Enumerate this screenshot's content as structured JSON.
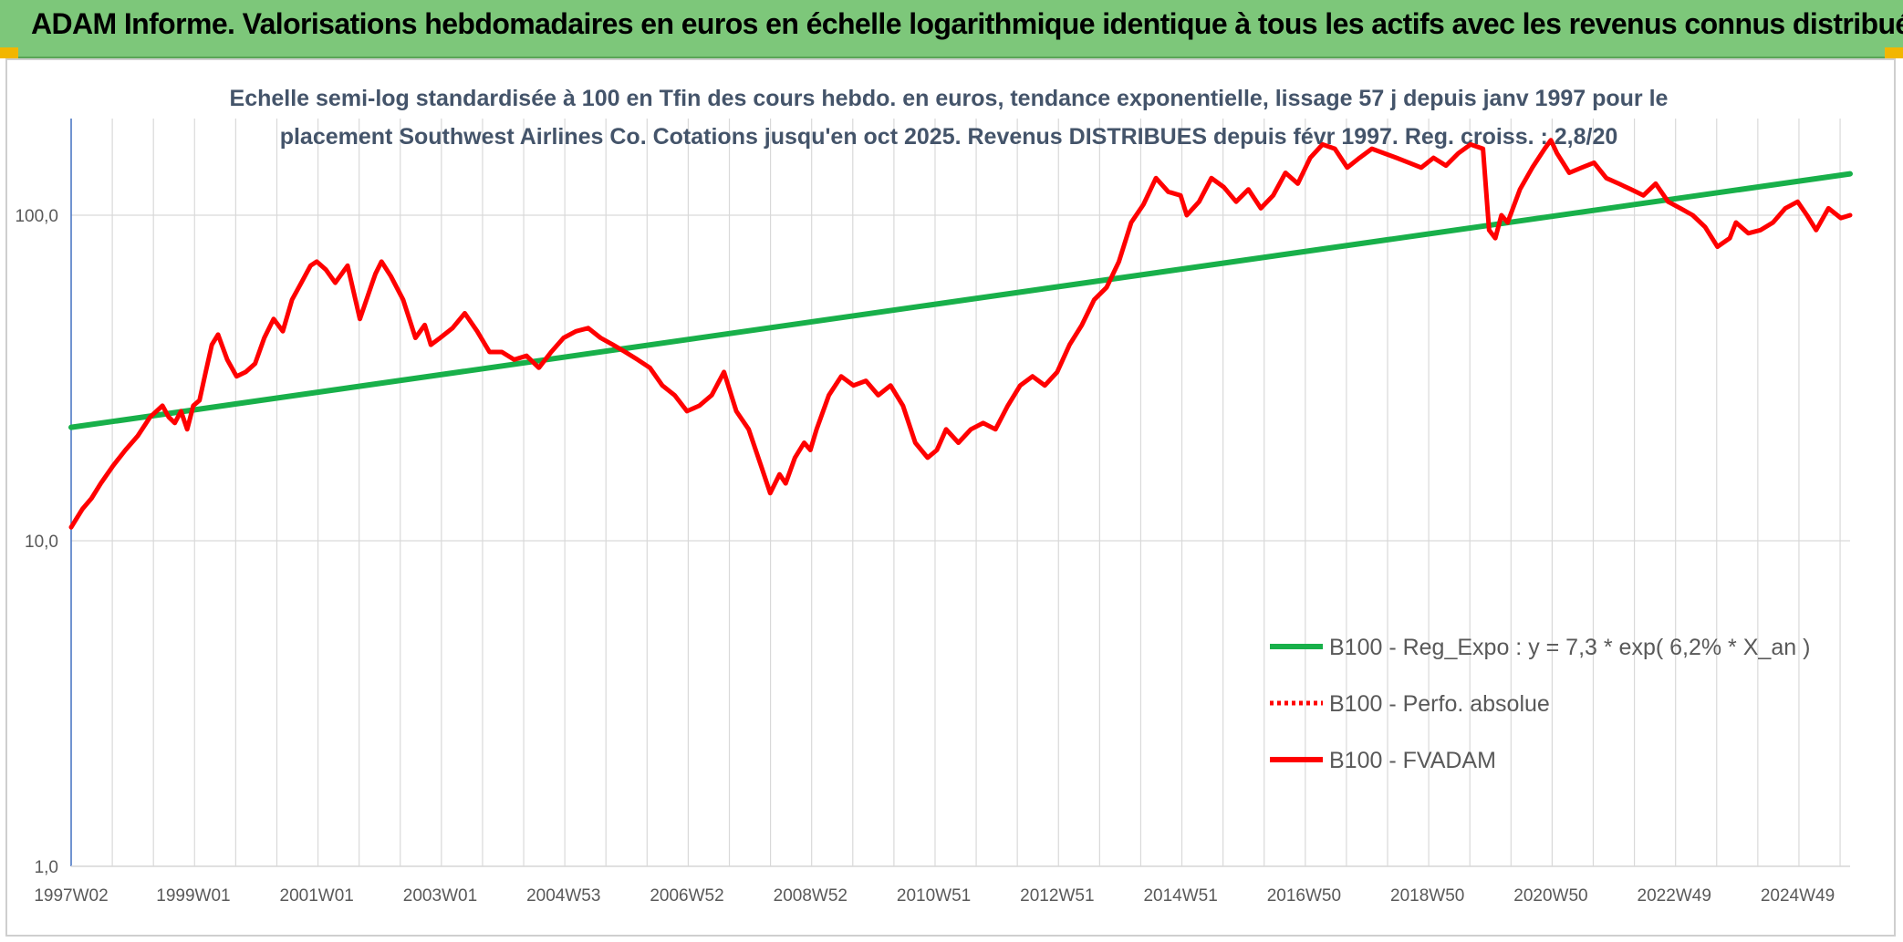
{
  "header": {
    "title": "ADAM Informe. Valorisations hebdomadaires en euros en échelle logarithmique identique à tous les actifs avec les revenus connus distribués"
  },
  "colors": {
    "banner": "#7dc77a",
    "trend": "#18b04a",
    "fvadam": "#ff0000",
    "grid": "#d9d9d9",
    "axis": "#4472c4"
  },
  "chart_data": {
    "type": "line",
    "title_lines": [
      "Echelle semi-log standardisée à 100 en Tfin des cours hebdo. en euros, tendance exponentielle, lissage 57 j depuis janv 1997 pour le",
      "placement Southwest Airlines Co. Cotations jusqu'en oct 2025. Revenus DISTRIBUES depuis févr 1997. Reg. croiss. : 2,8/20"
    ],
    "y_scale": "log",
    "ylim": [
      1,
      200
    ],
    "y_ticks": [
      {
        "value": 1,
        "label": "1,0"
      },
      {
        "value": 10,
        "label": "10,0"
      },
      {
        "value": 100,
        "label": "100,0"
      }
    ],
    "xlim": [
      1997.02,
      2025.85
    ],
    "x_ticks": [
      {
        "value": 1997.02,
        "label": "1997W02"
      },
      {
        "value": 1999.0,
        "label": "1999W01"
      },
      {
        "value": 2001.0,
        "label": "2001W01"
      },
      {
        "value": 2003.0,
        "label": "2003W01"
      },
      {
        "value": 2005.0,
        "label": "2004W53"
      },
      {
        "value": 2007.0,
        "label": "2006W52"
      },
      {
        "value": 2009.0,
        "label": "2008W52"
      },
      {
        "value": 2011.0,
        "label": "2010W51"
      },
      {
        "value": 2013.0,
        "label": "2012W51"
      },
      {
        "value": 2015.0,
        "label": "2014W51"
      },
      {
        "value": 2017.0,
        "label": "2016W50"
      },
      {
        "value": 2019.0,
        "label": "2018W50"
      },
      {
        "value": 2021.0,
        "label": "2020W50"
      },
      {
        "value": 2023.0,
        "label": "2022W49"
      },
      {
        "value": 2025.0,
        "label": "2024W49"
      }
    ],
    "legend": {
      "position": "right",
      "entries": [
        {
          "name": "B100 - Reg_Expo : y = 7,3 * exp( 6,2% *  X_an )",
          "style": "solid",
          "color": "#18b04a"
        },
        {
          "name": "B100 - Perfo. absolue",
          "style": "dotted",
          "color": "#ff0000"
        },
        {
          "name": "B100 - FVADAM",
          "style": "solid",
          "color": "#ff0000"
        }
      ]
    },
    "series": [
      {
        "name": "B100 - Reg_Expo : y = 7,3 * exp( 6,2% *  X_an )",
        "x": [
          1997.02,
          2025.85
        ],
        "y": [
          22.3,
          134
        ]
      },
      {
        "name": "B100 - FVADAM",
        "x": [
          1997.02,
          1997.2,
          1997.35,
          1997.5,
          1997.7,
          1997.9,
          1998.1,
          1998.3,
          1998.5,
          1998.6,
          1998.7,
          1998.8,
          1998.9,
          1999.0,
          1999.1,
          1999.2,
          1999.3,
          1999.4,
          1999.55,
          1999.7,
          1999.85,
          2000.0,
          2000.15,
          2000.3,
          2000.45,
          2000.6,
          2000.75,
          2000.9,
          2001.0,
          2001.15,
          2001.3,
          2001.5,
          2001.7,
          2001.9,
          2001.95,
          2002.05,
          2002.2,
          2002.4,
          2002.6,
          2002.75,
          2002.85,
          2003.0,
          2003.2,
          2003.4,
          2003.6,
          2003.8,
          2004.0,
          2004.2,
          2004.4,
          2004.6,
          2004.8,
          2005.0,
          2005.2,
          2005.4,
          2005.6,
          2005.8,
          2006.0,
          2006.2,
          2006.4,
          2006.6,
          2006.8,
          2007.0,
          2007.2,
          2007.4,
          2007.6,
          2007.8,
          2008.0,
          2008.2,
          2008.35,
          2008.5,
          2008.6,
          2008.75,
          2008.9,
          2009.0,
          2009.1,
          2009.3,
          2009.5,
          2009.7,
          2009.9,
          2010.1,
          2010.3,
          2010.5,
          2010.7,
          2010.9,
          2011.05,
          2011.2,
          2011.4,
          2011.6,
          2011.8,
          2012.0,
          2012.2,
          2012.4,
          2012.6,
          2012.8,
          2013.0,
          2013.2,
          2013.4,
          2013.6,
          2013.8,
          2014.0,
          2014.2,
          2014.4,
          2014.6,
          2014.8,
          2015.0,
          2015.1,
          2015.3,
          2015.5,
          2015.7,
          2015.9,
          2016.1,
          2016.3,
          2016.5,
          2016.7,
          2016.9,
          2017.1,
          2017.3,
          2017.5,
          2017.7,
          2017.9,
          2018.1,
          2018.3,
          2018.5,
          2018.7,
          2018.9,
          2019.1,
          2019.3,
          2019.5,
          2019.7,
          2019.9,
          2020.0,
          2020.1,
          2020.2,
          2020.3,
          2020.5,
          2020.7,
          2020.9,
          2021.0,
          2021.1,
          2021.3,
          2021.5,
          2021.7,
          2021.9,
          2022.1,
          2022.3,
          2022.5,
          2022.7,
          2022.9,
          2023.1,
          2023.3,
          2023.5,
          2023.7,
          2023.9,
          2024.0,
          2024.2,
          2024.4,
          2024.6,
          2024.8,
          2025.0,
          2025.15,
          2025.3,
          2025.5,
          2025.7,
          2025.85
        ],
        "y": [
          11,
          12.5,
          13.5,
          15,
          17,
          19,
          21,
          24,
          26,
          24,
          23,
          25,
          22,
          26,
          27,
          33,
          40,
          43,
          36,
          32,
          33,
          35,
          42,
          48,
          44,
          55,
          62,
          70,
          72,
          68,
          62,
          70,
          48,
          62,
          66,
          72,
          65,
          55,
          42,
          46,
          40,
          42,
          45,
          50,
          44,
          38,
          38,
          36,
          37,
          34,
          38,
          42,
          44,
          45,
          42,
          40,
          38,
          36,
          34,
          30,
          28,
          25,
          26,
          28,
          33,
          25,
          22,
          17,
          14,
          16,
          15,
          18,
          20,
          19,
          22,
          28,
          32,
          30,
          31,
          28,
          30,
          26,
          20,
          18,
          19,
          22,
          20,
          22,
          23,
          22,
          26,
          30,
          32,
          30,
          33,
          40,
          46,
          55,
          60,
          72,
          95,
          108,
          130,
          118,
          115,
          100,
          110,
          130,
          122,
          110,
          120,
          105,
          115,
          135,
          125,
          150,
          165,
          160,
          140,
          150,
          160,
          155,
          150,
          145,
          140,
          150,
          142,
          155,
          165,
          160,
          90,
          85,
          100,
          95,
          120,
          140,
          160,
          170,
          155,
          135,
          140,
          145,
          130,
          125,
          120,
          115,
          125,
          110,
          105,
          100,
          92,
          80,
          85,
          95,
          88,
          90,
          95,
          105,
          110,
          100,
          90,
          105,
          98,
          100
        ]
      }
    ]
  }
}
